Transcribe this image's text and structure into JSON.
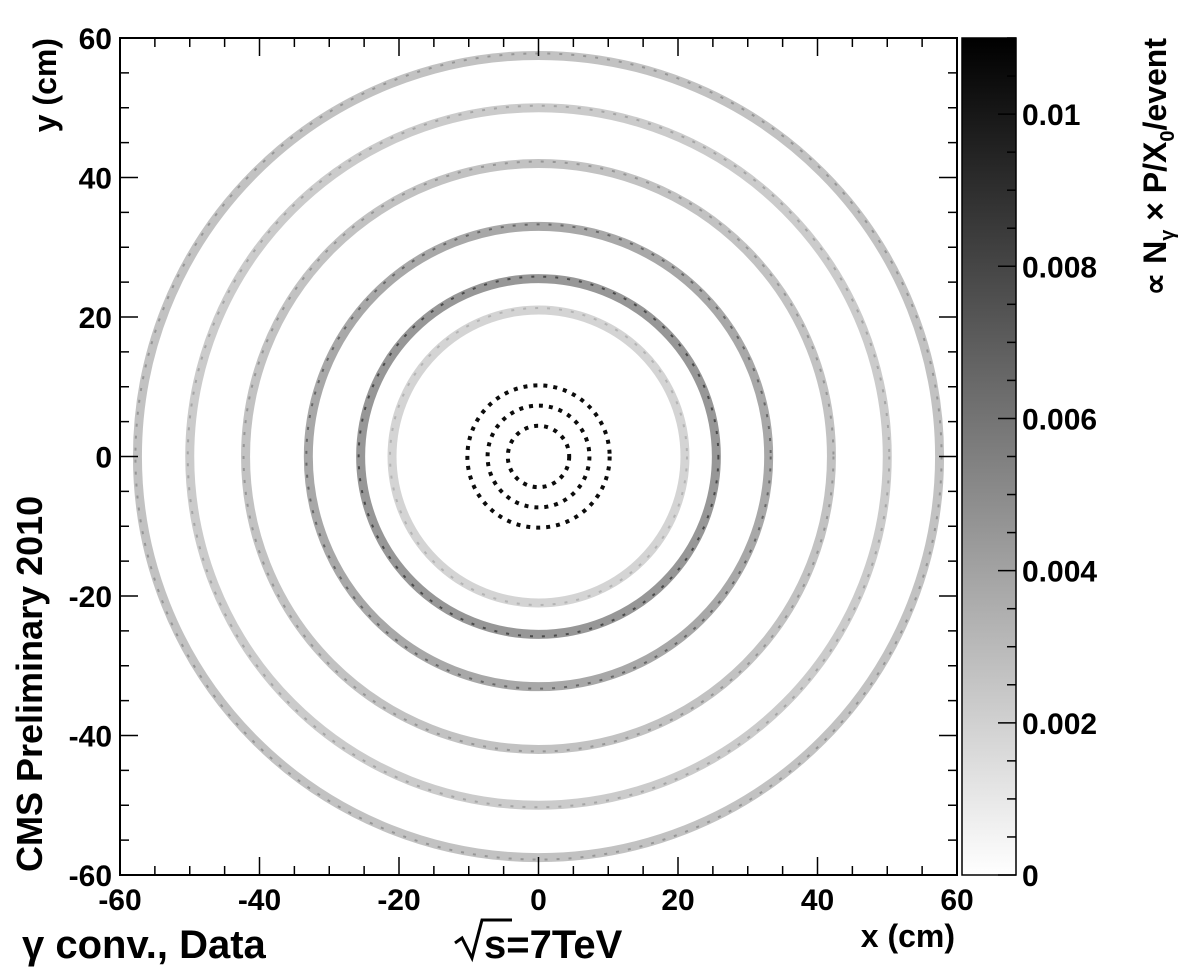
{
  "chart_data": {
    "type": "heatmap",
    "title": "",
    "xlabel": "x (cm)",
    "ylabel": "y (cm)",
    "xlim": [
      -60,
      60
    ],
    "ylim": [
      -60,
      60
    ],
    "xticks": [
      "-60",
      "-40",
      "-20",
      "0",
      "20",
      "40",
      "60"
    ],
    "yticks": [
      "60",
      "40",
      "20",
      "0",
      "-20",
      "-40",
      "-60"
    ],
    "colorbar": {
      "label": "∝ N_γ × P/X_0/event",
      "range": [
        0,
        0.011
      ],
      "ticks": [
        "0.01",
        "0.008",
        "0.006",
        "0.004",
        "0.002",
        "0"
      ],
      "colors": [
        "#ffffff",
        "#000000"
      ]
    },
    "side_label": "CMS Preliminary 2010",
    "bottom_label_prefix": "γ conv., Data",
    "bottom_label_suffix": "s=7TeV",
    "rings_cm": [
      {
        "r": 4.4,
        "intensity": 0.0105,
        "dotted": true
      },
      {
        "r": 7.3,
        "intensity": 0.0105,
        "dotted": true
      },
      {
        "r": 10.2,
        "intensity": 0.0105,
        "dotted": true
      },
      {
        "r": 21.0,
        "intensity": 0.0025,
        "dotted": false
      },
      {
        "r": 25.5,
        "intensity": 0.006,
        "dotted": false
      },
      {
        "r": 33.0,
        "intensity": 0.005,
        "dotted": false
      },
      {
        "r": 42.0,
        "intensity": 0.0035,
        "dotted": false
      },
      {
        "r": 50.0,
        "intensity": 0.003,
        "dotted": false
      },
      {
        "r": 57.5,
        "intensity": 0.0035,
        "dotted": false
      }
    ]
  }
}
